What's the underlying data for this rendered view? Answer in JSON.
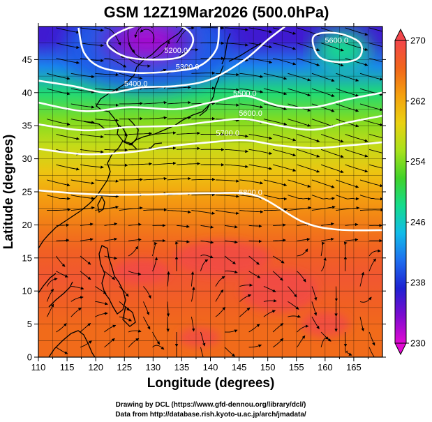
{
  "chart_data": {
    "type": "heatmap",
    "title": "GSM 12Z19Mar2026 (500.0hPa)",
    "xlabel": "Longitude (degrees)",
    "ylabel": "Latitude  (degrees)",
    "xlim": [
      110,
      170
    ],
    "ylim": [
      0,
      50
    ],
    "x_ticks": [
      "110",
      "115",
      "120",
      "125",
      "130",
      "135",
      "140",
      "145",
      "150",
      "155",
      "160",
      "165"
    ],
    "y_ticks": [
      "0",
      "5",
      "10",
      "15",
      "20",
      "25",
      "30",
      "35",
      "40",
      "45"
    ],
    "colorbar": {
      "range": [
        230,
        270
      ],
      "ticks": [
        "230",
        "238",
        "246",
        "254",
        "262",
        "270"
      ],
      "colors": [
        "#e10ad2",
        "#7d0bcf",
        "#1e22d2",
        "#1e6eee",
        "#11bce9",
        "#15dc8c",
        "#40d22a",
        "#a8e21c",
        "#ead112",
        "#f4a10f",
        "#f1651b",
        "#f2464b"
      ]
    },
    "temperature_rows": [
      {
        "lat": 48,
        "value": 236
      },
      {
        "lat": 44,
        "value": 242
      },
      {
        "lat": 40,
        "value": 249
      },
      {
        "lat": 36,
        "value": 254
      },
      {
        "lat": 32,
        "value": 257
      },
      {
        "lat": 28,
        "value": 260
      },
      {
        "lat": 24,
        "value": 263
      },
      {
        "lat": 20,
        "value": 265
      },
      {
        "lat": 16,
        "value": 267
      },
      {
        "lat": 12,
        "value": 268
      },
      {
        "lat": 8,
        "value": 267
      },
      {
        "lat": 4,
        "value": 266
      }
    ],
    "cold_core": {
      "lon": 129,
      "lat": 48,
      "value": 232
    },
    "contours": [
      {
        "label": "5200.0",
        "label_lon": 134,
        "label_lat": 46
      },
      {
        "label": "5300.0",
        "label_lon": 136,
        "label_lat": 43.5
      },
      {
        "label": "5400.0",
        "label_lon": 127,
        "label_lat": 41
      },
      {
        "label": "5500.0",
        "label_lon": 146,
        "label_lat": 39.5
      },
      {
        "label": "5600.0",
        "label_lon": 147,
        "label_lat": 36.5
      },
      {
        "label": "5700.0",
        "label_lon": 143,
        "label_lat": 33.5
      },
      {
        "label": "5800.0",
        "label_lon": 147,
        "label_lat": 24.5
      },
      {
        "label": "5600.0",
        "label_lon": 162,
        "label_lat": 47.5
      }
    ]
  },
  "footer": {
    "line1": "Drawing by DCL (https://www.gfd-dennou.org/library/dcl/)",
    "line2": "Data from http://database.rish.kyoto-u.ac.jp/arch/jmadata/"
  }
}
